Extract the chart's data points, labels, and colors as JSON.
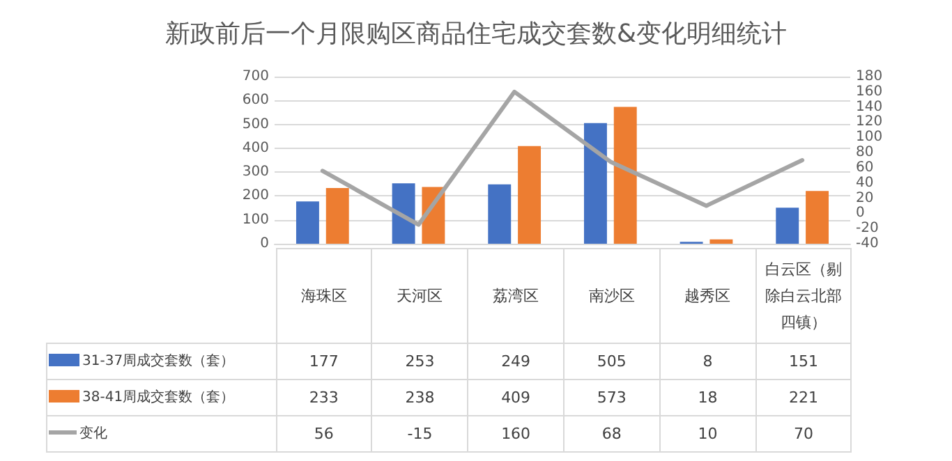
{
  "chart_data": {
    "type": "bar",
    "title": "新政前后一个月限购区商品住宅成交套数&变化明细统计",
    "categories": [
      "海珠区",
      "天河区",
      "荔湾区",
      "南沙区",
      "越秀区",
      "白云区（剔除白云北部四镇）"
    ],
    "series": [
      {
        "name": "31-37周成交套数（套）",
        "color": "#4472c4",
        "values": [
          177,
          253,
          249,
          505,
          8,
          151
        ]
      },
      {
        "name": "38-41周成交套数（套）",
        "color": "#ed7d31",
        "values": [
          233,
          238,
          409,
          573,
          18,
          221
        ]
      },
      {
        "name": "变化",
        "type": "line",
        "axis": "y2",
        "color": "#a5a5a5",
        "values": [
          56,
          -15,
          160,
          68,
          10,
          70
        ]
      }
    ],
    "ylim": [
      0,
      700
    ],
    "yticks": [
      0,
      100,
      200,
      300,
      400,
      500,
      600,
      700
    ],
    "y2lim": [
      -40,
      180
    ],
    "y2ticks": [
      -40,
      -20,
      0,
      20,
      40,
      60,
      80,
      100,
      120,
      140,
      160,
      180
    ],
    "grid": "y",
    "legend": "bottom",
    "data_labels": true,
    "marker": "none",
    "line_style": "solid"
  }
}
